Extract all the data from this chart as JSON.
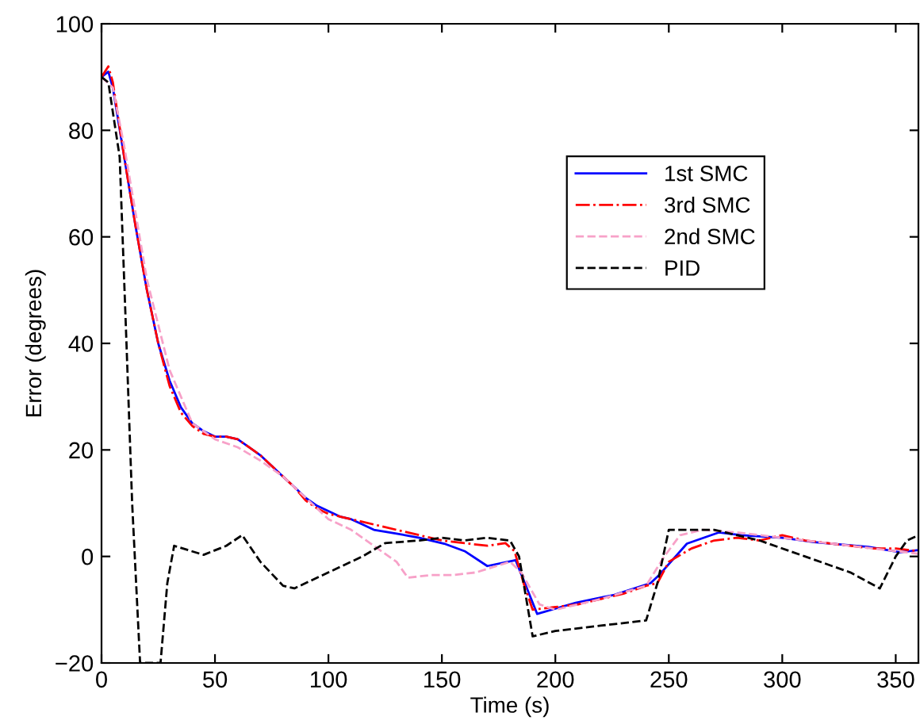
{
  "chart_data": {
    "type": "line",
    "xlabel": "Time (s)",
    "ylabel": "Error (degrees)",
    "xlim": [
      0,
      360
    ],
    "ylim": [
      -20,
      100
    ],
    "xticks": [
      0,
      50,
      100,
      150,
      200,
      250,
      300,
      350
    ],
    "yticks": [
      -20,
      0,
      20,
      40,
      60,
      80,
      100
    ],
    "grid": false,
    "legend": "top right",
    "marker": "none",
    "series": [
      {
        "name": "1st SMC",
        "color": "#0000ff",
        "line_style": "solid",
        "x": [
          0,
          3,
          5,
          10,
          15,
          20,
          25,
          30,
          35,
          40,
          45,
          50,
          55,
          60,
          65,
          70,
          75,
          80,
          85,
          90,
          95,
          100,
          105,
          110,
          115,
          120,
          130,
          140,
          151,
          160,
          170,
          182.5,
          192,
          200,
          209,
          226,
          242,
          245.5,
          258,
          272,
          282,
          300,
          314,
          338,
          352,
          360
        ],
        "values": [
          90,
          91,
          88,
          75,
          62,
          50,
          40,
          33,
          28,
          25,
          23.5,
          22.5,
          22.5,
          22,
          20.5,
          19,
          17,
          15,
          13,
          11,
          9.5,
          8.5,
          7.5,
          7,
          6,
          5,
          4.3,
          3.5,
          2.4,
          1,
          -1.8,
          -0.7,
          -10.8,
          -9.8,
          -8.7,
          -7.2,
          -5,
          -3.6,
          2.4,
          4.5,
          4,
          3.5,
          2.7,
          1.8,
          0.8,
          1.2
        ]
      },
      {
        "name": "3rd SMC",
        "color": "#ff0000",
        "line_style": "dashdot",
        "x": [
          0,
          3,
          5,
          10,
          15,
          20,
          25,
          30,
          35,
          40,
          45,
          50,
          55,
          60,
          65,
          70,
          75,
          80,
          85,
          90,
          95,
          100,
          105,
          110,
          120,
          130,
          140,
          150,
          160,
          170,
          178,
          182,
          186,
          190,
          200,
          210,
          220,
          230,
          240,
          245,
          250,
          260,
          270,
          280,
          290,
          300,
          310,
          320,
          340,
          350,
          360
        ],
        "values": [
          90,
          92,
          89,
          75,
          62,
          50,
          40,
          32,
          27,
          24.5,
          23,
          22.5,
          22.5,
          22,
          20.5,
          19,
          17,
          15,
          13,
          10.5,
          9,
          8,
          7.5,
          7,
          6,
          5,
          4,
          3,
          2.5,
          2,
          2.5,
          1,
          -5,
          -10,
          -9.5,
          -9,
          -8,
          -7,
          -5.5,
          -5,
          -1,
          1.5,
          3,
          3.5,
          3,
          4,
          3,
          2.5,
          1.5,
          1.5,
          1
        ]
      },
      {
        "name": "2nd SMC",
        "color": "#f7a1c8",
        "line_style": "dashed",
        "x": [
          0,
          5,
          10,
          20,
          30,
          40,
          50,
          60,
          70,
          80,
          90,
          100,
          110,
          120,
          130,
          135,
          145,
          155,
          165,
          180,
          185,
          193,
          200,
          220,
          240,
          248,
          255,
          265,
          280,
          300,
          320,
          340,
          360
        ],
        "values": [
          90,
          88,
          77,
          52,
          35,
          25,
          22,
          20.5,
          18,
          15,
          11,
          7,
          5,
          2,
          -1,
          -4,
          -3.5,
          -3.5,
          -3,
          -1,
          -3,
          -9,
          -10,
          -8,
          -5.5,
          0,
          4,
          5,
          4.5,
          3.5,
          2.5,
          1.5,
          0.5
        ]
      },
      {
        "name": "PID",
        "color": "#000000",
        "line_style": "dashed",
        "x": [
          0,
          3,
          8,
          11,
          13.5,
          17,
          26,
          29,
          32,
          45,
          55,
          62,
          70,
          80,
          85,
          100,
          115,
          125,
          140,
          150,
          160,
          170,
          180,
          184,
          190,
          200,
          220,
          240,
          245,
          250,
          260,
          270,
          290,
          310,
          330,
          343,
          350,
          355,
          360
        ],
        "values": [
          90,
          89,
          75,
          40,
          10,
          -20,
          -20,
          -5,
          2,
          0.3,
          2,
          4,
          -1,
          -5.5,
          -6,
          -3,
          0,
          2.5,
          3,
          3.5,
          3,
          3.5,
          3,
          0,
          -15,
          -14,
          -13,
          -12,
          -5,
          5,
          5,
          5,
          3,
          0,
          -3,
          -6,
          0,
          3,
          4
        ]
      }
    ]
  }
}
